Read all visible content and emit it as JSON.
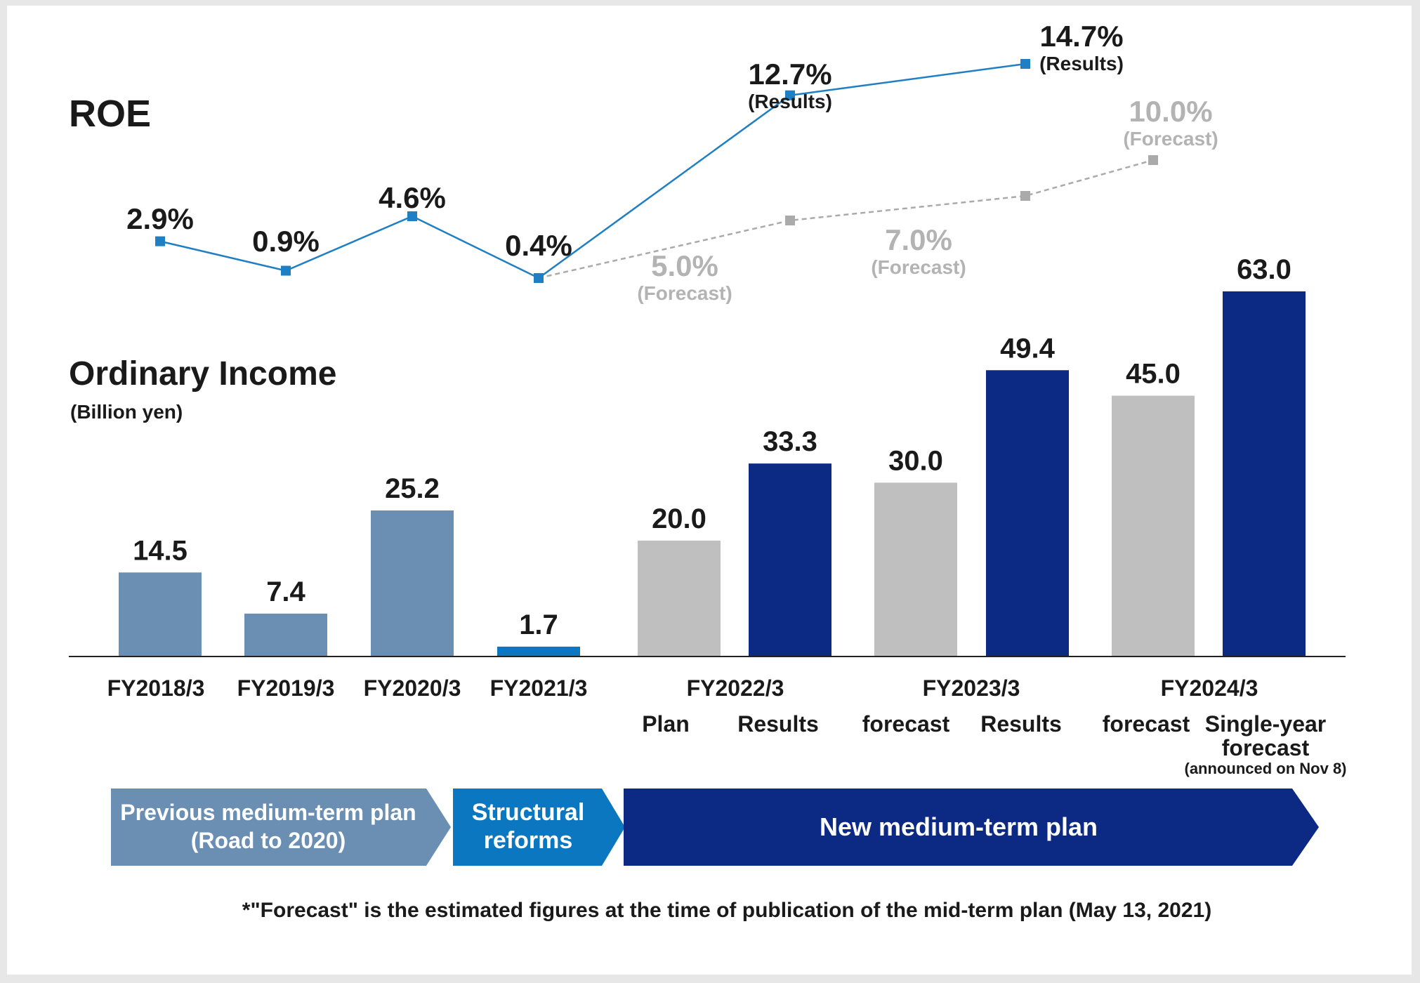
{
  "chart_data": [
    {
      "type": "line",
      "title": "ROE",
      "series": [
        {
          "name": "Results",
          "color": "#1f7fc4",
          "points": [
            {
              "x": "FY2018/3",
              "y": 2.9,
              "label": "2.9%"
            },
            {
              "x": "FY2019/3",
              "y": 0.9,
              "label": "0.9%"
            },
            {
              "x": "FY2020/3",
              "y": 4.6,
              "label": "4.6%"
            },
            {
              "x": "FY2021/3",
              "y": 0.4,
              "label": "0.4%"
            },
            {
              "x": "FY2022/3",
              "y": 12.7,
              "label": "12.7%",
              "sublabel": "(Results)"
            },
            {
              "x": "FY2023/3",
              "y": 14.7,
              "label": "14.7%",
              "sublabel": "(Results)"
            }
          ]
        },
        {
          "name": "Forecast",
          "color": "#aaaaaa",
          "style": "dashed",
          "points": [
            {
              "x": "FY2021/3",
              "y": 0.4,
              "label": ""
            },
            {
              "x": "FY2022/3",
              "y": 5.0,
              "label": "5.0%",
              "sublabel": "(Forecast)"
            },
            {
              "x": "FY2023/3",
              "y": 7.0,
              "label": "7.0%",
              "sublabel": "(Forecast)"
            },
            {
              "x": "FY2024/3",
              "y": 10.0,
              "label": "10.0%",
              "sublabel": "(Forecast)"
            }
          ]
        }
      ]
    },
    {
      "type": "bar",
      "title": "Ordinary Income",
      "unit": "(Billion yen)",
      "ylim": [
        0,
        63
      ],
      "bars": [
        {
          "group": "FY2018/3",
          "sub": "",
          "value": 14.5,
          "label": "14.5",
          "color": "#6b8fb3"
        },
        {
          "group": "FY2019/3",
          "sub": "",
          "value": 7.4,
          "label": "7.4",
          "color": "#6b8fb3"
        },
        {
          "group": "FY2020/3",
          "sub": "",
          "value": 25.2,
          "label": "25.2",
          "color": "#6b8fb3"
        },
        {
          "group": "FY2021/3",
          "sub": "",
          "value": 1.7,
          "label": "1.7",
          "color": "#0a77c0"
        },
        {
          "group": "FY2022/3",
          "sub": "Plan",
          "value": 20.0,
          "label": "20.0",
          "color": "#bfbfbf"
        },
        {
          "group": "FY2022/3",
          "sub": "Results",
          "value": 33.3,
          "label": "33.3",
          "color": "#0c2a84"
        },
        {
          "group": "FY2023/3",
          "sub": "forecast",
          "value": 30.0,
          "label": "30.0",
          "color": "#bfbfbf"
        },
        {
          "group": "FY2023/3",
          "sub": "Results",
          "value": 49.4,
          "label": "49.4",
          "color": "#0c2a84"
        },
        {
          "group": "FY2024/3",
          "sub": "forecast",
          "value": 45.0,
          "label": "45.0",
          "color": "#bfbfbf"
        },
        {
          "group": "FY2024/3",
          "sub": "Single-year forecast",
          "note": "(announced on Nov 8)",
          "value": 63.0,
          "label": "63.0",
          "color": "#0c2a84"
        }
      ],
      "groups": [
        "FY2018/3",
        "FY2019/3",
        "FY2020/3",
        "FY2021/3",
        "FY2022/3",
        "FY2023/3",
        "FY2024/3"
      ]
    }
  ],
  "sub_labels": {
    "plan": "Plan",
    "results": "Results",
    "forecast": "forecast",
    "single_line1": "Single-year",
    "single_line2": "forecast",
    "announced": "(announced on Nov 8)"
  },
  "phases": [
    {
      "line1": "Previous medium-term plan",
      "line2": "(Road to 2020)",
      "color": "#6b8fb3"
    },
    {
      "line1": "Structural",
      "line2": "reforms",
      "color": "#0a77c0"
    },
    {
      "line1": "New medium-term plan",
      "line2": "",
      "color": "#0c2a84"
    }
  ],
  "footnote": "*\"Forecast\" is the estimated figures at the time of publication of the mid-term plan (May 13, 2021)"
}
